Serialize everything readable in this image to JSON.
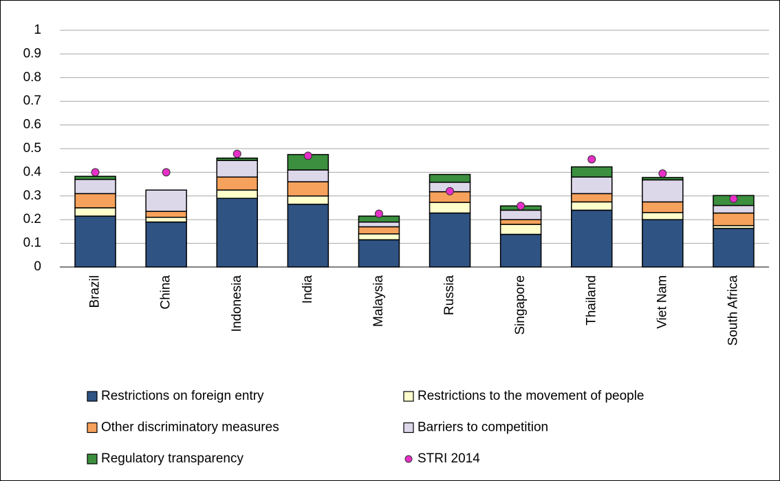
{
  "chart_data": {
    "type": "stacked-bar",
    "categories": [
      "Brazil",
      "China",
      "Indonesia",
      "India",
      "Malaysia",
      "Russia",
      "Singapore",
      "Thailand",
      "Viet Nam",
      "South Africa"
    ],
    "series": [
      {
        "name": "Restrictions on foreign entry",
        "color": "#2f5383",
        "values": [
          0.215,
          0.19,
          0.29,
          0.265,
          0.115,
          0.228,
          0.138,
          0.24,
          0.2,
          0.163
        ]
      },
      {
        "name": "Restrictions to the movement of people",
        "color": "#ffffcc",
        "values": [
          0.035,
          0.02,
          0.035,
          0.035,
          0.025,
          0.045,
          0.042,
          0.035,
          0.03,
          0.012
        ]
      },
      {
        "name": "Other discriminatory measures",
        "color": "#f7a25c",
        "values": [
          0.06,
          0.025,
          0.055,
          0.06,
          0.03,
          0.045,
          0.02,
          0.035,
          0.045,
          0.053
        ]
      },
      {
        "name": "Barriers to competition",
        "color": "#ddd7ea",
        "values": [
          0.06,
          0.09,
          0.07,
          0.05,
          0.02,
          0.04,
          0.04,
          0.07,
          0.093,
          0.032
        ]
      },
      {
        "name": "Regulatory transparency",
        "color": "#3b8f3e",
        "values": [
          0.013,
          0,
          0.01,
          0.065,
          0.025,
          0.033,
          0.018,
          0.043,
          0.01,
          0.042
        ]
      }
    ],
    "markers": {
      "name": "STRI 2014",
      "color": "#e52fc7",
      "values": [
        0.4,
        0.4,
        0.478,
        0.47,
        0.225,
        0.32,
        0.258,
        0.455,
        0.395,
        0.288
      ]
    },
    "ylim": [
      0,
      1
    ],
    "yticks": [
      0,
      0.1,
      0.2,
      0.3,
      0.4,
      0.5,
      0.6,
      0.7,
      0.8,
      0.9,
      1
    ],
    "grid": true
  }
}
